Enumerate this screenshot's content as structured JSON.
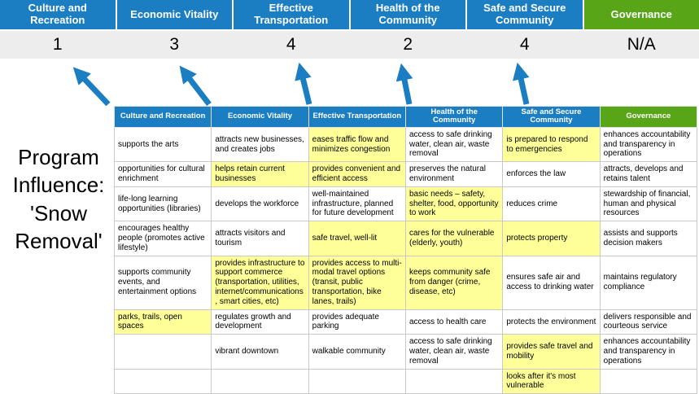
{
  "program_label": "Program Influence: 'Snow Removal'",
  "colors": {
    "header_blue": "#1b7ec2",
    "header_green": "#58a618",
    "score_band": "#ededed",
    "highlight_yellow": "#ffff99",
    "arrow_blue": "#1b7ec2",
    "grid_border": "#c9c9c9"
  },
  "summary": {
    "columns": [
      {
        "label": "Culture and Recreation",
        "score": "1",
        "color": "blue"
      },
      {
        "label": "Economic Vitality",
        "score": "3",
        "color": "blue"
      },
      {
        "label": "Effective Transportation",
        "score": "4",
        "color": "blue"
      },
      {
        "label": "Health of the Community",
        "score": "2",
        "color": "blue"
      },
      {
        "label": "Safe and Secure Community",
        "score": "4",
        "color": "blue"
      },
      {
        "label": "Governance",
        "score": "N/A",
        "color": "green"
      }
    ]
  },
  "matrix": {
    "headers": [
      {
        "label": "Culture and Recreation",
        "color": "blue"
      },
      {
        "label": "Economic Vitality",
        "color": "blue"
      },
      {
        "label": "Effective Transportation",
        "color": "blue"
      },
      {
        "label": "Health of the Community",
        "color": "blue"
      },
      {
        "label": "Safe and Secure Community",
        "color": "blue"
      },
      {
        "label": "Governance",
        "color": "green"
      }
    ],
    "rows": [
      [
        {
          "text": "supports the arts",
          "highlight": false
        },
        {
          "text": "attracts new businesses, and creates jobs",
          "highlight": false
        },
        {
          "text": "eases traffic flow and minimizes congestion",
          "highlight": true
        },
        {
          "text": "access to safe drinking water, clean air, waste removal",
          "highlight": false
        },
        {
          "text": "is prepared to respond to emergencies",
          "highlight": true
        },
        {
          "text": "enhances accountability and transparency in operations",
          "highlight": false
        }
      ],
      [
        {
          "text": "opportunities for cultural enrichment",
          "highlight": false
        },
        {
          "text": "helps retain current businesses",
          "highlight": true
        },
        {
          "text": "provides convenient and efficient access",
          "highlight": true
        },
        {
          "text": "preserves the natural environment",
          "highlight": false
        },
        {
          "text": "enforces the law",
          "highlight": false
        },
        {
          "text": "attracts, develops and retains talent",
          "highlight": false
        }
      ],
      [
        {
          "text": "life-long learning opportunities (libraries)",
          "highlight": false
        },
        {
          "text": "develops the workforce",
          "highlight": false
        },
        {
          "text": "well-maintained infrastructure, planned for future development",
          "highlight": false
        },
        {
          "text": "basic needs – safety, shelter, food, opportunity to work",
          "highlight": true
        },
        {
          "text": "reduces crime",
          "highlight": false
        },
        {
          "text": "stewardship of financial, human and physical resources",
          "highlight": false
        }
      ],
      [
        {
          "text": "encourages healthy people (promotes active lifestyle)",
          "highlight": false
        },
        {
          "text": "attracts visitors and tourism",
          "highlight": false
        },
        {
          "text": "safe travel, well-lit",
          "highlight": true
        },
        {
          "text": "cares for the vulnerable (elderly, youth)",
          "highlight": true
        },
        {
          "text": "protects property",
          "highlight": true
        },
        {
          "text": "assists and supports decision makers",
          "highlight": false
        }
      ],
      [
        {
          "text": "supports community events, and entertainment options",
          "highlight": false
        },
        {
          "text": "provides infrastructure to support commerce (transportation, utilities, internet/communications, smart cities, etc)",
          "highlight": true
        },
        {
          "text": "provides access to multi-modal travel options (transit, public transportation, bike lanes, trails)",
          "highlight": true
        },
        {
          "text": "keeps community safe from danger (crime, disease, etc)",
          "highlight": true
        },
        {
          "text": "ensures safe air and access to drinking water",
          "highlight": false
        },
        {
          "text": "maintains regulatory compliance",
          "highlight": false
        }
      ],
      [
        {
          "text": "parks, trails, open spaces",
          "highlight": true
        },
        {
          "text": "regulates growth and development",
          "highlight": false
        },
        {
          "text": "provides adequate parking",
          "highlight": false
        },
        {
          "text": "access to health care",
          "highlight": false
        },
        {
          "text": "protects the environment",
          "highlight": false
        },
        {
          "text": "delivers responsible and courteous service",
          "highlight": false
        }
      ],
      [
        {
          "text": "",
          "highlight": false
        },
        {
          "text": "vibrant downtown",
          "highlight": false
        },
        {
          "text": "walkable community",
          "highlight": false
        },
        {
          "text": "access to safe drinking water, clean air, waste removal",
          "highlight": false
        },
        {
          "text": "provides safe travel and mobility",
          "highlight": true
        },
        {
          "text": "enhances accountability and transparency in operations",
          "highlight": false
        }
      ],
      [
        {
          "text": "",
          "highlight": false
        },
        {
          "text": "",
          "highlight": false
        },
        {
          "text": "",
          "highlight": false
        },
        {
          "text": "",
          "highlight": false
        },
        {
          "text": "looks after it's most vulnerable",
          "highlight": true
        },
        {
          "text": "",
          "highlight": false
        }
      ]
    ]
  }
}
